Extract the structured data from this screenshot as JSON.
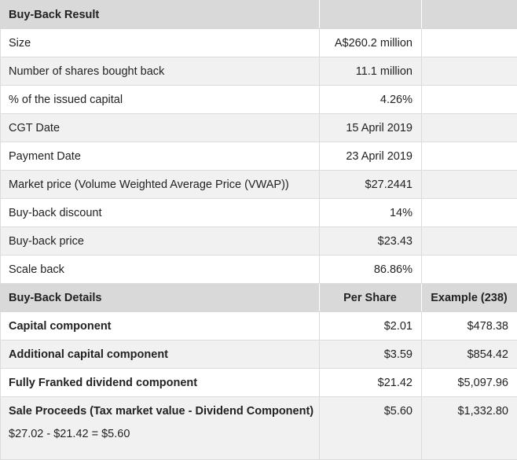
{
  "result": {
    "header": [
      "Buy-Back Result",
      "",
      ""
    ],
    "rows": [
      {
        "label": "Size",
        "value": "A$260.2 million",
        "extra": ""
      },
      {
        "label": "Number of shares bought back",
        "value": "11.1 million",
        "extra": ""
      },
      {
        "label": "% of the issued capital",
        "value": "4.26%",
        "extra": ""
      },
      {
        "label": "CGT Date",
        "value": "15 April 2019",
        "extra": ""
      },
      {
        "label": "Payment Date",
        "value": "23 April 2019",
        "extra": ""
      },
      {
        "label": "Market price (Volume Weighted Average Price (VWAP))",
        "value": "$27.2441",
        "extra": ""
      },
      {
        "label": "Buy-back discount",
        "value": "14%",
        "extra": ""
      },
      {
        "label": "Buy-back price",
        "value": "$23.43",
        "extra": ""
      },
      {
        "label": "Scale back",
        "value": "86.86%",
        "extra": ""
      }
    ]
  },
  "details": {
    "header": [
      "Buy-Back Details",
      "Per Share",
      "Example (238)"
    ],
    "rows": [
      {
        "label": "Capital component",
        "per_share": "$2.01",
        "example": "$478.38"
      },
      {
        "label": "Additional capital component",
        "per_share": "$3.59",
        "example": "$854.42"
      },
      {
        "label": "Fully Franked dividend component",
        "per_share": "$21.42",
        "example": "$5,097.96"
      },
      {
        "label": "Sale Proceeds (Tax market value - Dividend Component)",
        "sub": "$27.02 - $21.42 = $5.60",
        "per_share": "$5.60",
        "example": "$1,332.80"
      }
    ]
  }
}
